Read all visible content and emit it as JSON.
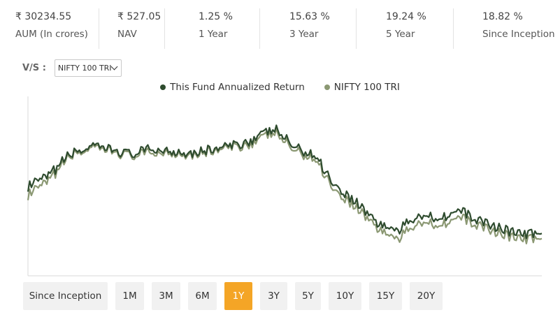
{
  "stats": [
    {
      "value": "₹ 30234.55",
      "label": "AUM (In crores)"
    },
    {
      "value": "₹ 527.05",
      "label": "NAV"
    },
    {
      "value": "1.25 %",
      "label": "1 Year"
    },
    {
      "value": "15.63 %",
      "label": "3 Year"
    },
    {
      "value": "19.24 %",
      "label": "5 Year"
    },
    {
      "value": "18.82 %",
      "label": "Since Inception"
    }
  ],
  "compare": {
    "label": "V/S :",
    "selected": "NIFTY 100 TRI"
  },
  "ranges": [
    {
      "label": "Since Inception",
      "active": false
    },
    {
      "label": "1M",
      "active": false
    },
    {
      "label": "3M",
      "active": false
    },
    {
      "label": "6M",
      "active": false
    },
    {
      "label": "1Y",
      "active": true
    },
    {
      "label": "3Y",
      "active": false
    },
    {
      "label": "5Y",
      "active": false
    },
    {
      "label": "10Y",
      "active": false
    },
    {
      "label": "15Y",
      "active": false
    },
    {
      "label": "20Y",
      "active": false
    }
  ],
  "colors": {
    "fund": "#2e4b2e",
    "index": "#8b9873",
    "active_range": "#f4a526",
    "button_bg": "#f1f1f1"
  },
  "chart_data": {
    "type": "line",
    "x": [
      0,
      4,
      8,
      12,
      16,
      20,
      24,
      28,
      32,
      36,
      40,
      44,
      48,
      52,
      56,
      60,
      64,
      68,
      72,
      76,
      80,
      84,
      88,
      92,
      96,
      100
    ],
    "series": [
      {
        "name": "This Fund Annualized Return",
        "values": [
          52,
          58,
          71,
          75,
          74,
          71,
          74,
          73,
          72,
          74,
          76,
          80,
          86,
          75,
          70,
          52,
          43,
          31,
          26,
          36,
          34,
          38,
          32,
          28,
          24,
          25
        ]
      },
      {
        "name": "NIFTY 100 TRI",
        "values": [
          47,
          55,
          70,
          74,
          73,
          70,
          72,
          72,
          71,
          73,
          75,
          78,
          84,
          73,
          68,
          49,
          40,
          28,
          21,
          32,
          30,
          34,
          29,
          25,
          21,
          22
        ]
      }
    ],
    "ylim": [
      0,
      100
    ],
    "grid": false,
    "legend_position": "top-center"
  }
}
